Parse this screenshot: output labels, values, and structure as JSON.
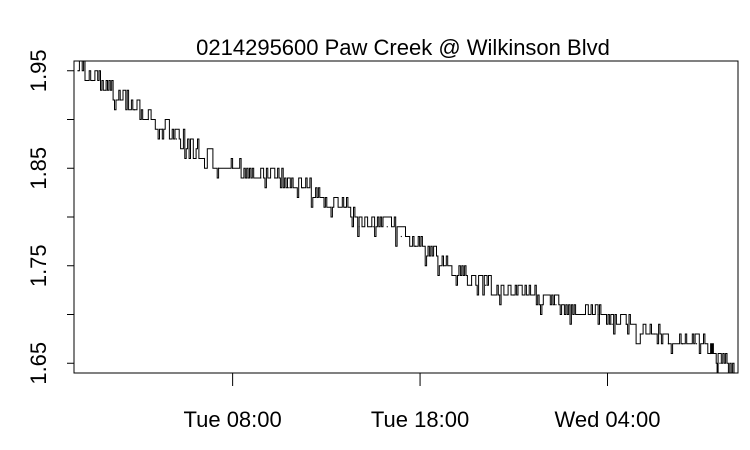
{
  "chart_data": {
    "type": "line",
    "title": "0214295600 Paw Creek @ Wilkinson Blvd",
    "xlabel": "",
    "ylabel": "",
    "x_tick_labels": [
      "Tue 08:00",
      "Tue 18:00",
      "Wed 04:00"
    ],
    "y_ticks": [
      1.65,
      1.75,
      1.85,
      1.95
    ],
    "y_tick_labels": [
      "1.65",
      "1.75",
      "1.85",
      "1.95"
    ],
    "ylim": [
      1.64,
      1.96
    ],
    "grid": false,
    "legend": "none",
    "line_color": "#000000",
    "series": [
      {
        "x": [
          "Mon 23:45",
          "Tue 00:30",
          "Tue 01:15",
          "Tue 02:00",
          "Tue 02:45",
          "Tue 03:30",
          "Tue 04:15",
          "Tue 05:00",
          "Tue 05:45",
          "Tue 06:30",
          "Tue 07:15",
          "Tue 08:00",
          "Tue 08:45",
          "Tue 09:30",
          "Tue 10:15",
          "Tue 11:00",
          "Tue 11:45",
          "Tue 12:30",
          "Tue 13:15",
          "Tue 14:00",
          "Tue 14:45",
          "Tue 15:30",
          "Tue 16:15",
          "Tue 17:00",
          "Tue 17:45",
          "Tue 18:30",
          "Tue 19:15",
          "Tue 20:00",
          "Tue 20:45",
          "Tue 21:30",
          "Tue 22:15",
          "Tue 23:00",
          "Tue 23:45",
          "Wed 00:30",
          "Wed 01:15",
          "Wed 02:00",
          "Wed 02:45",
          "Wed 03:30",
          "Wed 04:15",
          "Wed 05:00",
          "Wed 05:45",
          "Wed 06:30",
          "Wed 07:15",
          "Wed 08:00",
          "Wed 08:45",
          "Wed 09:30",
          "Wed 10:00",
          "Wed 10:45"
        ],
        "values": [
          1.95,
          1.94,
          1.93,
          1.92,
          1.91,
          1.9,
          1.89,
          1.88,
          1.87,
          1.86,
          1.85,
          1.85,
          1.84,
          1.84,
          1.84,
          1.83,
          1.83,
          1.82,
          1.81,
          1.81,
          1.79,
          1.79,
          1.79,
          1.78,
          1.77,
          1.76,
          1.75,
          1.74,
          1.73,
          1.73,
          1.72,
          1.72,
          1.72,
          1.71,
          1.71,
          1.7,
          1.7,
          1.7,
          1.69,
          1.69,
          1.68,
          1.68,
          1.67,
          1.67,
          1.67,
          1.66,
          1.65,
          1.64
        ]
      }
    ]
  }
}
